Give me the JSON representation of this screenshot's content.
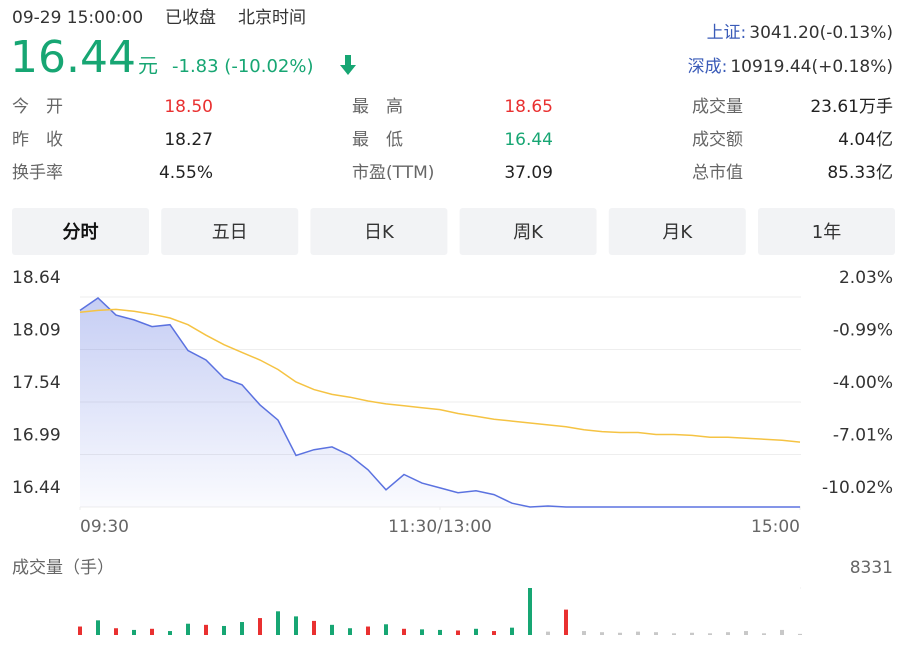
{
  "header": {
    "datetime": "09-29 15:00:00",
    "status": "已收盘",
    "timezone": "北京时间",
    "price": "16.44",
    "unit": "元",
    "change": "-1.83 (-10.02%)",
    "indices": [
      {
        "name": "上证:",
        "value": "3041.20(-0.13%)"
      },
      {
        "name": "深成:",
        "value": "10919.44(+0.18%)"
      }
    ]
  },
  "stats": [
    [
      {
        "label": "今开",
        "value": "18.50",
        "color": "#e93030"
      },
      {
        "label": "最高",
        "value": "18.65",
        "color": "#e93030"
      },
      {
        "label": "成交量",
        "value": "23.61万手",
        "color": "#222222"
      }
    ],
    [
      {
        "label": "昨收",
        "value": "18.27",
        "color": "#222222"
      },
      {
        "label": "最低",
        "value": "16.44",
        "color": "#17a673"
      },
      {
        "label": "成交额",
        "value": "4.04亿",
        "color": "#222222"
      }
    ],
    [
      {
        "label": "换手率",
        "value": "4.55%",
        "color": "#222222"
      },
      {
        "label": "市盈(TTM)",
        "value": "37.09",
        "color": "#222222"
      },
      {
        "label": "总市值",
        "value": "85.33亿",
        "color": "#222222"
      }
    ]
  ],
  "tabs": [
    "分时",
    "五日",
    "日K",
    "周K",
    "月K",
    "1年"
  ],
  "chart_data": [
    {
      "type": "line",
      "xlim": [
        0,
        240
      ],
      "xticks": [
        {
          "value": 0,
          "label": "09:30"
        },
        {
          "value": 120,
          "label": "11:30/13:00"
        },
        {
          "value": 240,
          "label": "15:00"
        }
      ],
      "ylim": [
        16.44,
        18.64
      ],
      "yticks": [
        18.64,
        18.09,
        17.54,
        16.99,
        16.44
      ],
      "y2lim": [
        -10.02,
        2.03
      ],
      "y2ticks": [
        {
          "value": 2.03,
          "label": "2.03%"
        },
        {
          "value": -0.99,
          "label": "-0.99%"
        },
        {
          "value": -4.0,
          "label": "-4.00%"
        },
        {
          "value": -7.01,
          "label": "-7.01%"
        },
        {
          "value": -10.02,
          "label": "-10.02%"
        }
      ],
      "grid": true,
      "x": [
        0,
        6,
        12,
        18,
        24,
        30,
        36,
        42,
        48,
        54,
        60,
        66,
        72,
        78,
        84,
        90,
        96,
        102,
        108,
        114,
        120,
        126,
        132,
        138,
        144,
        150,
        156,
        162,
        168,
        174,
        180,
        186,
        192,
        198,
        204,
        210,
        216,
        222,
        228,
        234,
        240
      ],
      "series": [
        {
          "color": "#5b72e0",
          "area": true,
          "values": [
            18.5,
            18.63,
            18.45,
            18.4,
            18.33,
            18.35,
            18.08,
            17.98,
            17.79,
            17.72,
            17.51,
            17.35,
            16.98,
            17.04,
            17.07,
            16.98,
            16.83,
            16.62,
            16.78,
            16.69,
            16.64,
            16.59,
            16.61,
            16.57,
            16.48,
            16.44,
            16.45,
            16.44,
            16.44,
            16.44,
            16.44,
            16.44,
            16.44,
            16.44,
            16.44,
            16.44,
            16.44,
            16.44,
            16.44,
            16.44,
            16.44
          ]
        },
        {
          "color": "#f5c343",
          "area": false,
          "values": [
            18.48,
            18.5,
            18.51,
            18.49,
            18.46,
            18.42,
            18.35,
            18.24,
            18.14,
            18.06,
            17.98,
            17.88,
            17.75,
            17.67,
            17.62,
            17.59,
            17.55,
            17.52,
            17.5,
            17.48,
            17.46,
            17.42,
            17.39,
            17.36,
            17.34,
            17.32,
            17.3,
            17.28,
            17.25,
            17.23,
            17.22,
            17.22,
            17.2,
            17.2,
            17.19,
            17.17,
            17.17,
            17.16,
            17.15,
            17.14,
            17.12
          ]
        }
      ]
    },
    {
      "type": "bar",
      "title": "成交量（手）",
      "xlim": [
        0,
        240
      ],
      "ylim": [
        0,
        8331
      ],
      "yticks": [
        8331
      ],
      "x": [
        0,
        6,
        12,
        18,
        24,
        30,
        36,
        42,
        48,
        54,
        60,
        66,
        72,
        78,
        84,
        90,
        96,
        102,
        108,
        114,
        120,
        126,
        132,
        138,
        144,
        150,
        156,
        162,
        168,
        174,
        180,
        186,
        192,
        198,
        204,
        210,
        216,
        222,
        228,
        234,
        240
      ],
      "values": [
        1500,
        2600,
        1200,
        900,
        1100,
        700,
        2000,
        1800,
        1600,
        2300,
        3000,
        4200,
        3300,
        2500,
        1800,
        1200,
        1500,
        1900,
        1100,
        1000,
        900,
        800,
        1100,
        700,
        1300,
        8331,
        600,
        4500,
        700,
        500,
        400,
        600,
        500,
        300,
        400,
        300,
        500,
        700,
        300,
        900,
        200
      ],
      "colors": [
        "#e93030",
        "#17a673",
        "#e93030",
        "#17a673",
        "#e93030",
        "#17a673",
        "#17a673",
        "#e93030",
        "#17a673",
        "#17a673",
        "#e93030",
        "#17a673",
        "#17a673",
        "#e93030",
        "#17a673",
        "#17a673",
        "#e93030",
        "#17a673",
        "#e93030",
        "#17a673",
        "#17a673",
        "#e93030",
        "#17a673",
        "#e93030",
        "#17a673",
        "#17a673",
        "#c8c8c8",
        "#e93030",
        "#c8c8c8",
        "#c8c8c8",
        "#c8c8c8",
        "#c8c8c8",
        "#c8c8c8",
        "#c8c8c8",
        "#c8c8c8",
        "#c8c8c8",
        "#c8c8c8",
        "#c8c8c8",
        "#c8c8c8",
        "#c8c8c8",
        "#c8c8c8"
      ]
    }
  ]
}
